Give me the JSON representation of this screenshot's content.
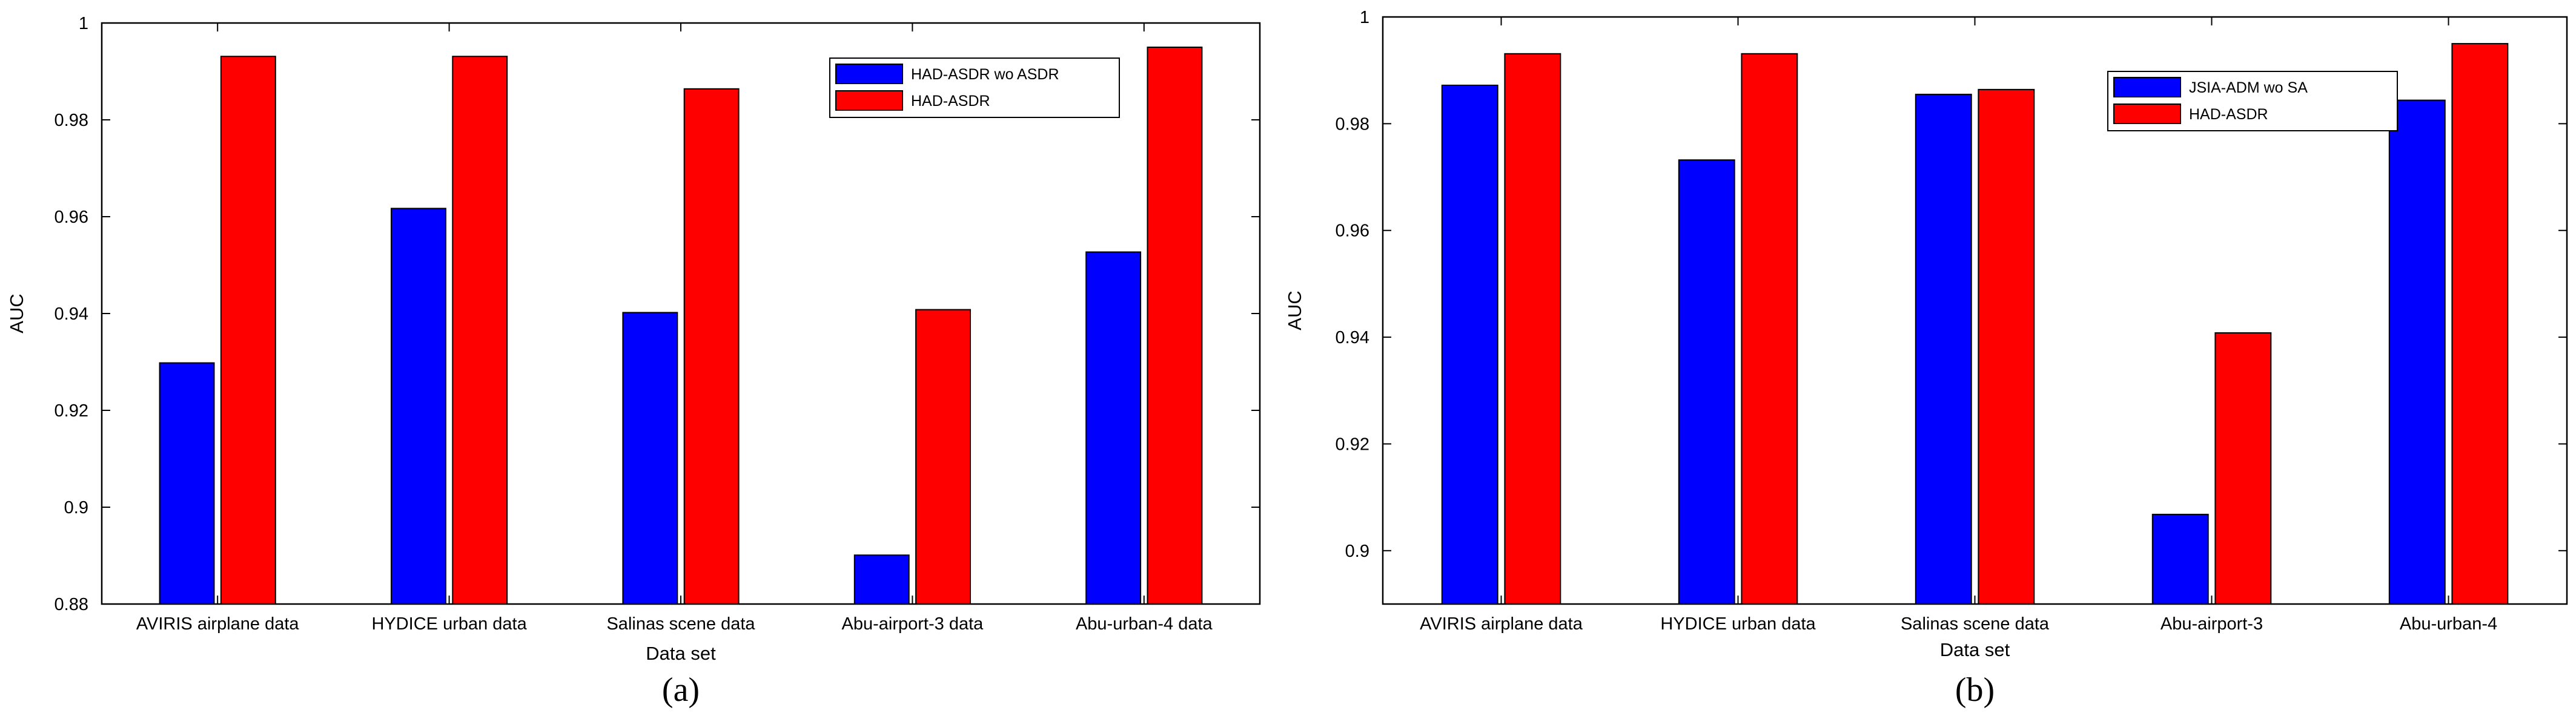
{
  "chart_data": [
    {
      "type": "bar",
      "panel_label": "(a)",
      "categories": [
        "AVIRIS airplane data",
        "HYDICE urban data",
        "Salinas scene data",
        "Abu-airport-3 data",
        "Abu-urban-4 data"
      ],
      "series": [
        {
          "name": "HAD-ASDR wo ASDR",
          "color": "#0000ff",
          "values": [
            0.9298,
            0.9617,
            0.9402,
            0.8901,
            0.9527
          ]
        },
        {
          "name": "HAD-ASDR",
          "color": "#ff0000",
          "values": [
            0.9931,
            0.9931,
            0.9864,
            0.9408,
            0.995
          ]
        }
      ],
      "xlabel": "Data set",
      "ylabel": "AUC",
      "ylim": [
        0.88,
        1.0
      ],
      "yticks": [
        0.88,
        0.9,
        0.92,
        0.94,
        0.96,
        0.98,
        1
      ],
      "ytick_labels": [
        "0.88",
        "0.9",
        "0.92",
        "0.94",
        "0.96",
        "0.98",
        "1"
      ],
      "legend_position": "top-right",
      "grid": false
    },
    {
      "type": "bar",
      "panel_label": "(b)",
      "categories": [
        "AVIRIS airplane data",
        "HYDICE urban data",
        "Salinas scene data",
        "Abu-airport-3",
        "Abu-urban-4"
      ],
      "series": [
        {
          "name": "JSIA-ADM wo SA",
          "color": "#0000ff",
          "values": [
            0.9872,
            0.9732,
            0.9855,
            0.9068,
            0.9844
          ]
        },
        {
          "name": "HAD-ASDR",
          "color": "#ff0000",
          "values": [
            0.9931,
            0.9931,
            0.9864,
            0.9408,
            0.995
          ]
        }
      ],
      "xlabel": "Data set",
      "ylabel": "AUC",
      "ylim": [
        0.89,
        1.0
      ],
      "yticks": [
        0.9,
        0.92,
        0.94,
        0.96,
        0.98,
        1
      ],
      "ytick_labels": [
        "0.9",
        "0.92",
        "0.94",
        "0.96",
        "0.98",
        "1"
      ],
      "legend_position": "top-right",
      "grid": false
    }
  ]
}
